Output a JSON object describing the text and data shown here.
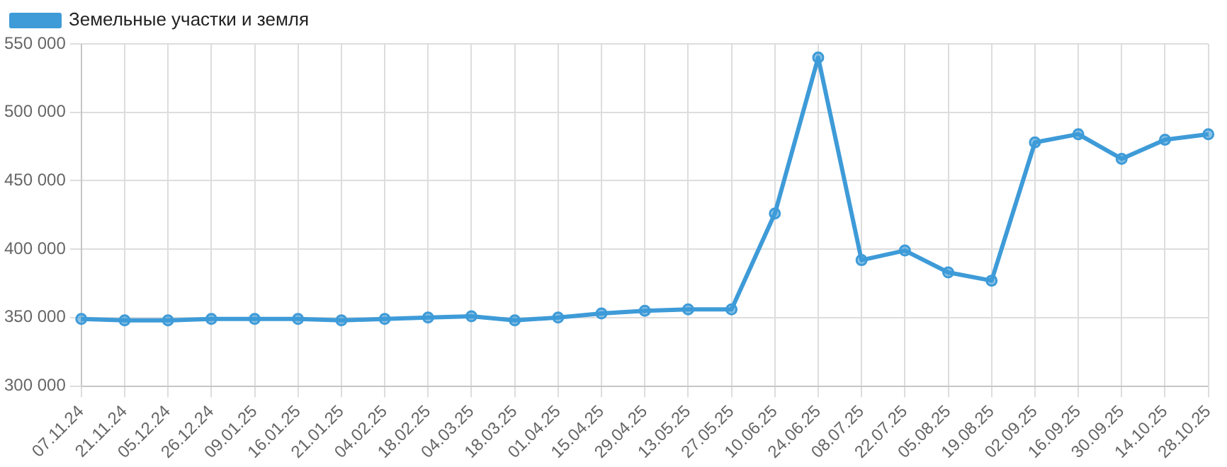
{
  "chart_data": {
    "type": "line",
    "categories": [
      "07.11.24",
      "21.11.24",
      "05.12.24",
      "26.12.24",
      "09.01.25",
      "16.01.25",
      "21.01.25",
      "04.02.25",
      "18.02.25",
      "04.03.25",
      "18.03.25",
      "01.04.25",
      "15.04.25",
      "29.04.25",
      "13.05.25",
      "27.05.25",
      "10.06.25",
      "24.06.25",
      "08.07.25",
      "22.07.25",
      "05.08.25",
      "19.08.25",
      "02.09.25",
      "16.09.25",
      "30.09.25",
      "14.10.25",
      "28.10.25"
    ],
    "series": [
      {
        "name": "Земельные участки и земля",
        "color": "#3e9bd8",
        "values": [
          349000,
          348000,
          348000,
          349000,
          349000,
          349000,
          348000,
          349000,
          350000,
          351000,
          348000,
          350000,
          353000,
          355000,
          356000,
          356000,
          426000,
          540000,
          392000,
          399000,
          383000,
          377000,
          478000,
          484000,
          466000,
          480000,
          484000
        ]
      }
    ],
    "ylim": [
      300000,
      550000
    ],
    "yticks": [
      {
        "value": 300000,
        "label": "300 000"
      },
      {
        "value": 350000,
        "label": "350 000"
      },
      {
        "value": 400000,
        "label": "400 000"
      },
      {
        "value": 450000,
        "label": "450 000"
      },
      {
        "value": 500000,
        "label": "500 000"
      },
      {
        "value": 550000,
        "label": "550 000"
      }
    ],
    "grid": true,
    "legend": "top left",
    "marker": "circle",
    "line_style": "solid"
  }
}
